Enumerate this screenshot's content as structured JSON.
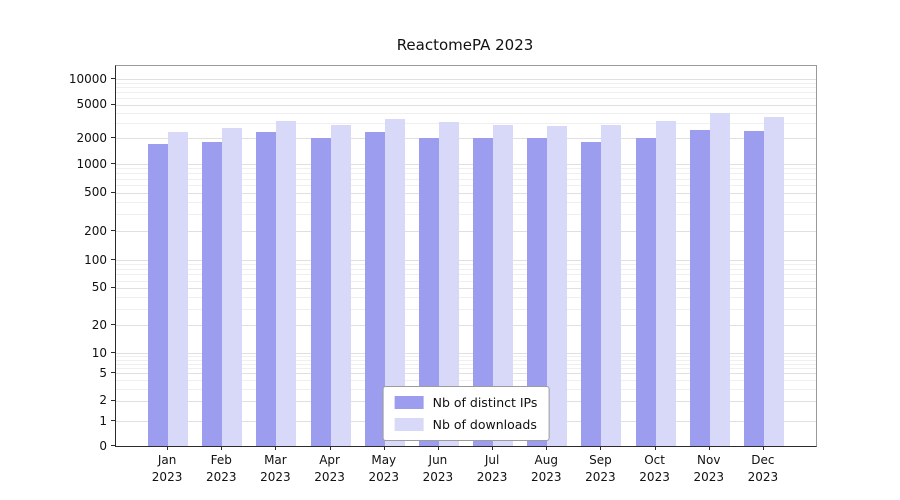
{
  "chart_data": {
    "type": "bar",
    "title": "ReactomePA 2023",
    "yscale": "symlog",
    "grid": true,
    "legend_position": "lower-center-inside",
    "yticks": [
      0,
      1,
      2,
      5,
      10,
      20,
      50,
      100,
      200,
      500,
      1000,
      2000,
      5000,
      10000
    ],
    "ylim": [
      0,
      13000
    ],
    "categories": [
      {
        "month": "Jan",
        "year": "2023"
      },
      {
        "month": "Feb",
        "year": "2023"
      },
      {
        "month": "Mar",
        "year": "2023"
      },
      {
        "month": "Apr",
        "year": "2023"
      },
      {
        "month": "May",
        "year": "2023"
      },
      {
        "month": "Jun",
        "year": "2023"
      },
      {
        "month": "Jul",
        "year": "2023"
      },
      {
        "month": "Aug",
        "year": "2023"
      },
      {
        "month": "Sep",
        "year": "2023"
      },
      {
        "month": "Oct",
        "year": "2023"
      },
      {
        "month": "Nov",
        "year": "2023"
      },
      {
        "month": "Dec",
        "year": "2023"
      }
    ],
    "series": [
      {
        "name": "Nb of distinct IPs",
        "color": "#9d9df0",
        "values": [
          1700,
          1800,
          2350,
          2000,
          2400,
          2050,
          2050,
          2050,
          1800,
          2050,
          2500,
          2450
        ]
      },
      {
        "name": "Nb of downloads",
        "color": "#d8d8f8",
        "values": [
          2400,
          2650,
          3250,
          2900,
          3400,
          3100,
          2900,
          2800,
          2850,
          3200,
          4000,
          3600
        ]
      }
    ]
  }
}
